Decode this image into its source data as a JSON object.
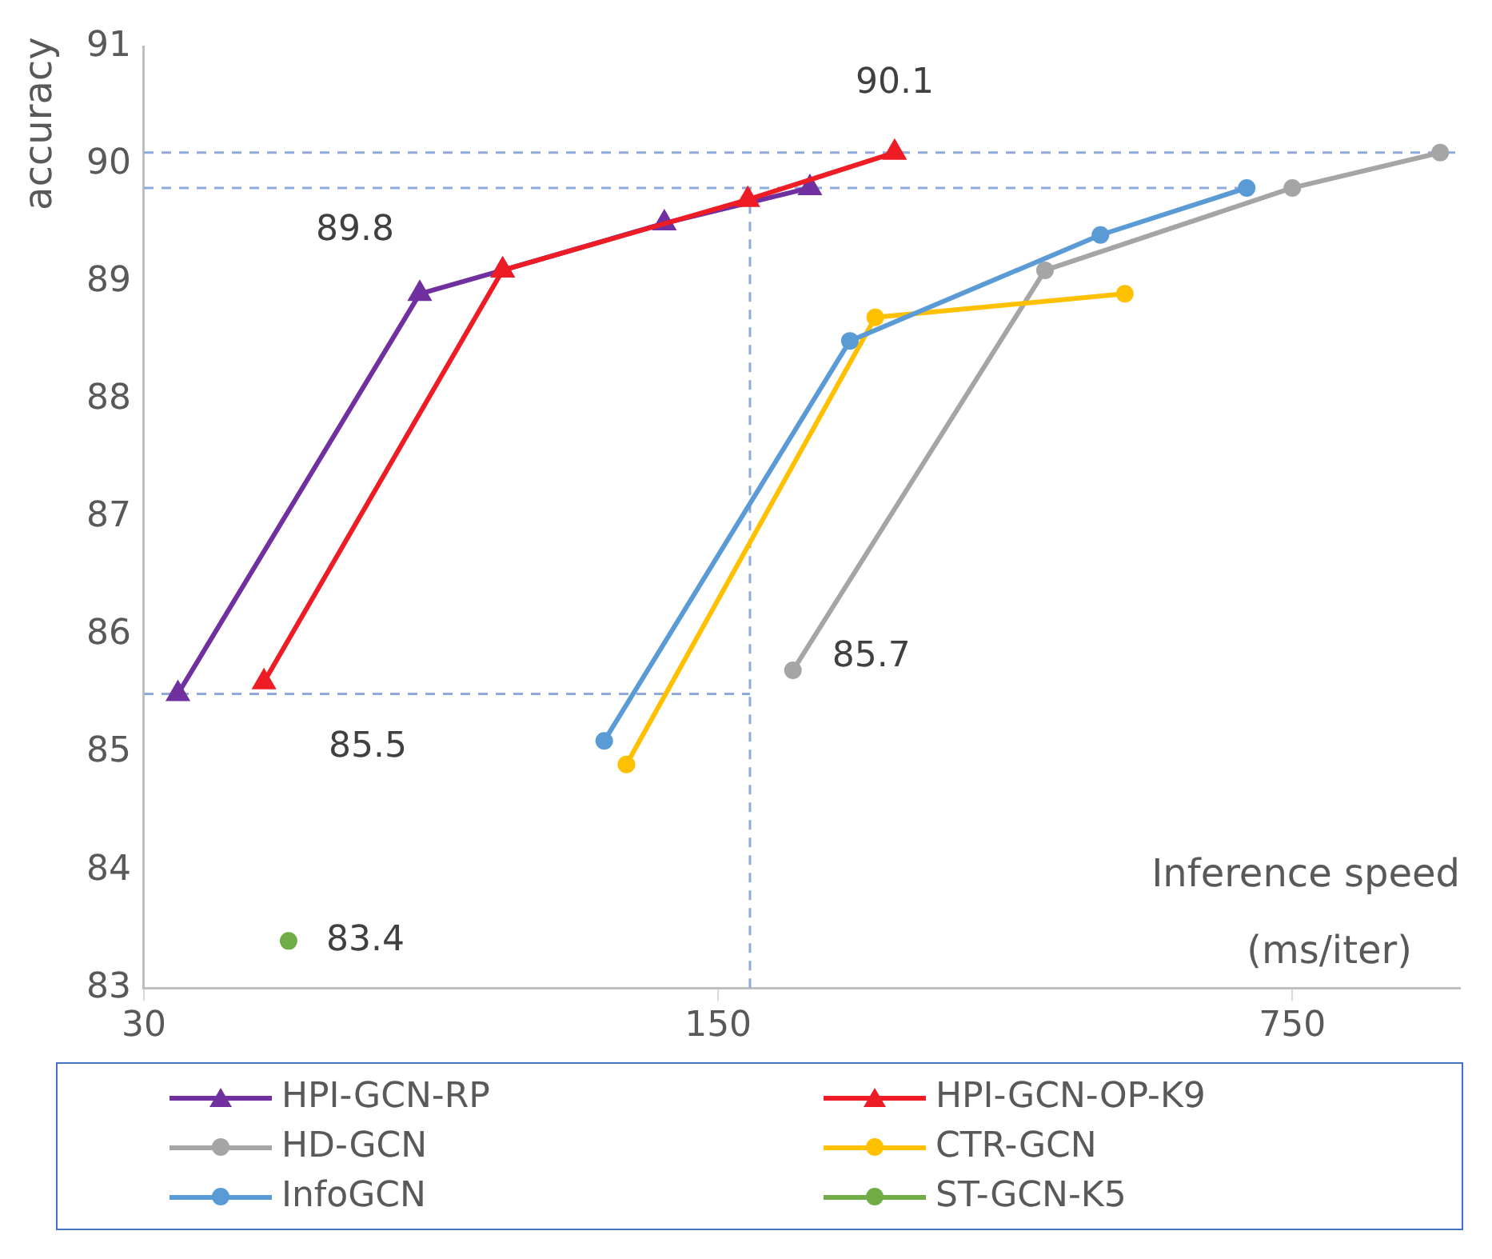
{
  "chart_data": {
    "type": "line",
    "xlabel": "Inference speed\n(ms/iter)",
    "ylabel": "accuracy",
    "log": "x",
    "xlim": [
      30,
      1200
    ],
    "xticks": [
      30,
      150,
      750
    ],
    "ylim": [
      83,
      91
    ],
    "yticks": [
      83,
      84,
      85,
      86,
      87,
      88,
      89,
      90,
      91
    ],
    "grid": false,
    "legend": "bottom",
    "series": [
      {
        "name": "HPI-GCN-RP",
        "color": "#7030a0",
        "marker": "triangle",
        "x": [
          33,
          65,
          82,
          129,
          194
        ],
        "values": [
          85.5,
          88.9,
          89.1,
          89.5,
          89.8
        ]
      },
      {
        "name": "HPI-GCN-OP-K9",
        "color": "#ee1c25",
        "marker": "triangle",
        "x": [
          42,
          82,
          163,
          246
        ],
        "values": [
          85.6,
          89.1,
          89.7,
          90.1
        ]
      },
      {
        "name": "HD-GCN",
        "color": "#a5a5a5",
        "marker": "circle",
        "x": [
          185,
          375,
          750,
          1135
        ],
        "values": [
          85.7,
          89.1,
          89.8,
          90.1
        ]
      },
      {
        "name": "CTR-GCN",
        "color": "#ffc000",
        "marker": "circle",
        "x": [
          116,
          233,
          469
        ],
        "values": [
          84.9,
          88.7,
          88.9
        ]
      },
      {
        "name": "InfoGCN",
        "color": "#5b9bd5",
        "marker": "circle",
        "x": [
          109,
          217,
          438,
          660
        ],
        "values": [
          85.1,
          88.5,
          89.4,
          89.8
        ]
      },
      {
        "name": "ST-GCN-K5",
        "color": "#70ad47",
        "marker": "circle",
        "x": [
          45
        ],
        "values": [
          83.4
        ]
      },
      {
        "color": "#8faadc",
        "marker": "none",
        "line_style": "dashed",
        "x": [
          30,
          1200
        ],
        "values": [
          90.1,
          90.1
        ]
      },
      {
        "color": "#8faadc",
        "marker": "none",
        "line_style": "dashed",
        "x": [
          30,
          660
        ],
        "values": [
          89.8,
          89.8
        ]
      },
      {
        "color": "#8faadc",
        "marker": "none",
        "line_style": "dashed",
        "x": [
          30,
          164
        ],
        "values": [
          85.5,
          85.5
        ]
      },
      {
        "color": "#8faadc",
        "marker": "none",
        "line_style": "dashed",
        "x": [
          164,
          164
        ],
        "values": [
          83,
          89.8
        ]
      }
    ],
    "annotations": [
      {
        "text": "90.1",
        "x": 246,
        "y": 90.1
      },
      "89.8",
      "85.5",
      {
        "text": "85.7",
        "x": 185,
        "y": 85.7
      },
      {
        "text": "83.4",
        "x": 45,
        "y": 83.4
      }
    ]
  }
}
